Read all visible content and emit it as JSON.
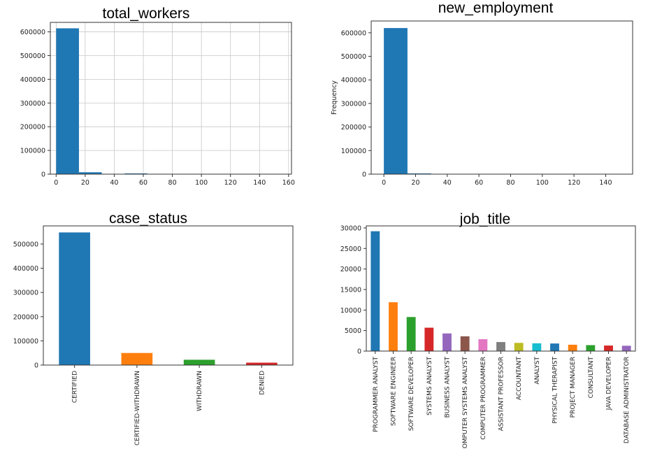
{
  "chart_data": [
    {
      "id": "total_workers",
      "type": "bar",
      "subtype": "histogram",
      "title": "total_workers",
      "ylabel": "",
      "grid": true,
      "xlim": [
        -4,
        162
      ],
      "ylim": [
        0,
        640000
      ],
      "xticks": [
        0,
        20,
        40,
        60,
        80,
        100,
        120,
        140,
        160
      ],
      "yticks": [
        0,
        100000,
        200000,
        300000,
        400000,
        500000,
        600000
      ],
      "bins": [
        {
          "x0": 0,
          "x1": 15.7,
          "value": 615000
        },
        {
          "x0": 15.7,
          "x1": 31.4,
          "value": 8000
        },
        {
          "x0": 31.4,
          "x1": 47.1,
          "value": 1500
        },
        {
          "x0": 47.1,
          "x1": 62.8,
          "value": 3000
        },
        {
          "x0": 62.8,
          "x1": 78.5,
          "value": 400
        },
        {
          "x0": 78.5,
          "x1": 94.2,
          "value": 200
        },
        {
          "x0": 94.2,
          "x1": 109.9,
          "value": 100
        },
        {
          "x0": 109.9,
          "x1": 125.6,
          "value": 80
        },
        {
          "x0": 125.6,
          "x1": 141.3,
          "value": 50
        },
        {
          "x0": 141.3,
          "x1": 157,
          "value": 40
        }
      ],
      "color": "#1f77b4"
    },
    {
      "id": "new_employment",
      "type": "bar",
      "subtype": "histogram",
      "title": "new_employment",
      "ylabel": "Frequency",
      "grid": false,
      "xlim": [
        -8,
        157
      ],
      "ylim": [
        0,
        650000
      ],
      "xticks": [
        0,
        20,
        40,
        60,
        80,
        100,
        120,
        140
      ],
      "yticks": [
        0,
        100000,
        200000,
        300000,
        400000,
        500000,
        600000
      ],
      "bins": [
        {
          "x0": 0,
          "x1": 14.9,
          "value": 620000
        },
        {
          "x0": 14.9,
          "x1": 29.8,
          "value": 3000
        },
        {
          "x0": 29.8,
          "x1": 44.7,
          "value": 600
        },
        {
          "x0": 44.7,
          "x1": 59.6,
          "value": 300
        },
        {
          "x0": 59.6,
          "x1": 74.5,
          "value": 150
        },
        {
          "x0": 74.5,
          "x1": 89.4,
          "value": 100
        },
        {
          "x0": 89.4,
          "x1": 104.3,
          "value": 80
        },
        {
          "x0": 104.3,
          "x1": 119.2,
          "value": 60
        },
        {
          "x0": 119.2,
          "x1": 134.1,
          "value": 40
        },
        {
          "x0": 134.1,
          "x1": 149,
          "value": 30
        }
      ],
      "color": "#1f77b4"
    },
    {
      "id": "case_status",
      "type": "bar",
      "title": "case_status",
      "ylabel": "",
      "grid": false,
      "ylim": [
        0,
        575000
      ],
      "yticks": [
        0,
        100000,
        200000,
        300000,
        400000,
        500000
      ],
      "categories": [
        "CERTIFIED",
        "CERTIFIED-WITHDRAWN",
        "WITHDRAWN",
        "DENIED"
      ],
      "values": [
        548000,
        50000,
        22000,
        10000
      ],
      "colors": [
        "#1f77b4",
        "#ff7f0e",
        "#2ca02c",
        "#d62728"
      ]
    },
    {
      "id": "job_title",
      "type": "bar",
      "title": "job_title",
      "ylabel": "",
      "grid": false,
      "ylim": [
        0,
        30500
      ],
      "yticks": [
        0,
        5000,
        10000,
        15000,
        20000,
        25000,
        30000
      ],
      "categories": [
        "PROGRAMMER ANALYST",
        "SOFTWARE ENGINEER",
        "SOFTWARE DEVELOPER",
        "SYSTEMS ANALYST",
        "BUSINESS ANALYST",
        "COMPUTER SYSTEMS ANALYST",
        "COMPUTER PROGRAMMER",
        "ASSISTANT PROFESSOR",
        "ACCOUNTANT",
        "ANALYST",
        "PHYSICAL THERAPIST",
        "PROJECT MANAGER",
        "CONSULTANT",
        "JAVA DEVELOPER",
        "DATABASE ADMINISTRATOR"
      ],
      "values": [
        29200,
        11900,
        8300,
        5700,
        4300,
        3600,
        2900,
        2200,
        2000,
        1900,
        1850,
        1550,
        1450,
        1350,
        1300
      ],
      "colors": [
        "#1f77b4",
        "#ff7f0e",
        "#2ca02c",
        "#d62728",
        "#9467bd",
        "#8c564b",
        "#e377c2",
        "#7f7f7f",
        "#bcbd22",
        "#17becf",
        "#1f77b4",
        "#ff7f0e",
        "#2ca02c",
        "#d62728",
        "#9467bd"
      ]
    }
  ]
}
